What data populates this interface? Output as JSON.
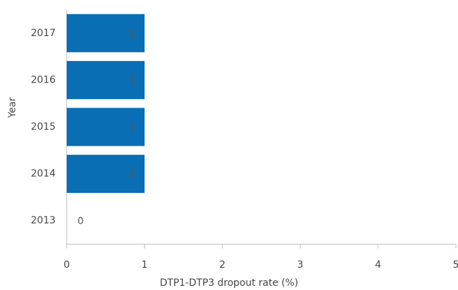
{
  "chart_data": {
    "type": "barh",
    "categories": [
      "2017",
      "2016",
      "2015",
      "2014",
      "2013"
    ],
    "values": [
      1,
      1,
      1,
      1,
      0
    ],
    "color": "#0a6eb4",
    "xlabel": "DTP1-DTP3 dropout rate (%)",
    "ylabel": "Year",
    "xlim": [
      0,
      5
    ],
    "xticks": [
      0,
      1,
      2,
      3,
      4,
      5
    ],
    "grid": false
  }
}
